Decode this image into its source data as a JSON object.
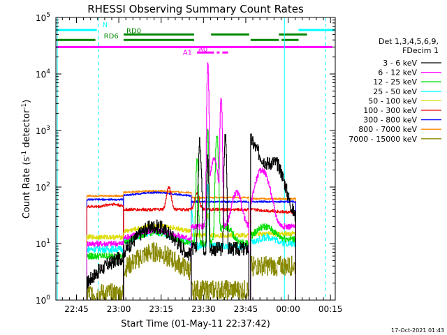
{
  "chart_data": {
    "type": "line",
    "title": "RHESSI Observing Summary Count Rates",
    "xlabel": "Start Time (01-May-11 22:37:42)",
    "ylabel_main": "Count Rate (s",
    "ylabel_sup": "-1",
    "ylabel_end": " detector",
    "ylabel_sup2": "-1",
    "ylabel_close": ")",
    "ylim": [
      1,
      100000
    ],
    "yscale": "log",
    "y_ticks": [
      {
        "v": 1,
        "base": "10",
        "exp": "0"
      },
      {
        "v": 10,
        "base": "10",
        "exp": "1"
      },
      {
        "v": 100,
        "base": "10",
        "exp": "2"
      },
      {
        "v": 1000,
        "base": "10",
        "exp": "3"
      },
      {
        "v": 10000,
        "base": "10",
        "exp": "4"
      },
      {
        "v": 100000,
        "base": "10",
        "exp": "5"
      }
    ],
    "x_unit": "minutes after 22:37:42",
    "xlim": [
      0,
      99
    ],
    "x_ticks": [
      {
        "t": 7.3,
        "label": "22:45"
      },
      {
        "t": 22.3,
        "label": "23:00"
      },
      {
        "t": 37.3,
        "label": "23:15"
      },
      {
        "t": 52.3,
        "label": "23:30"
      },
      {
        "t": 67.3,
        "label": "23:45"
      },
      {
        "t": 82.3,
        "label": "00:00"
      },
      {
        "t": 97.3,
        "label": "00:15"
      }
    ],
    "legend_header": [
      "Det 1,3,4,5,6,9,",
      "FDecim 1"
    ],
    "legend_position": "right",
    "series": [
      {
        "name": "3 - 6 keV",
        "color": "#000000"
      },
      {
        "name": "6 - 12 keV",
        "color": "#ff00ff"
      },
      {
        "name": "12 - 25 keV",
        "color": "#00dd00"
      },
      {
        "name": "25 - 50 keV",
        "color": "#00ffff"
      },
      {
        "name": "50 - 100 keV",
        "color": "#dddd00"
      },
      {
        "name": "100 - 300 keV",
        "color": "#ee0000"
      },
      {
        "name": "300 - 800 keV",
        "color": "#0000ff"
      },
      {
        "name": "800 - 7000 keV",
        "color": "#ff8800"
      },
      {
        "name": "7000 - 15000 keV",
        "color": "#888800"
      }
    ],
    "flag_bars": [
      {
        "label": "N",
        "color": "#00ffff",
        "level": 60000,
        "segments": [
          [
            0,
            14.5
          ],
          [
            86,
            99
          ]
        ],
        "label_t": 16.5
      },
      {
        "label": "RD0",
        "color": "#008800",
        "level": 50000,
        "segments": [
          [
            24,
            49
          ],
          [
            55,
            68.5
          ],
          [
            79,
            89
          ]
        ],
        "label_t": 25
      },
      {
        "label": "RD6",
        "color": "#008800",
        "level": 40000,
        "segments": [
          [
            0,
            14
          ],
          [
            24,
            49
          ],
          [
            69,
            79
          ],
          [
            80,
            86
          ]
        ],
        "label_t": 17
      },
      {
        "label": "A1",
        "color": "#ff00ff",
        "level": 30000,
        "segments": [
          [
            0,
            98
          ]
        ],
        "label_t": 45
      },
      {
        "label": "A0",
        "color": "#ff00ff",
        "level": 24000,
        "segments": [
          [
            50,
            56
          ],
          [
            57,
            58
          ],
          [
            59,
            61
          ]
        ],
        "label_t": 50.5
      }
    ],
    "saa_lines": [
      {
        "color": "#00ffff",
        "style": "dashed",
        "t": 15
      },
      {
        "color": "#00ffff",
        "style": "solid",
        "t": 81
      },
      {
        "color": "#00ffff",
        "style": "dashed",
        "t": 95.5
      },
      {
        "color": "#00ffff",
        "style": "solid",
        "t": 0.5
      }
    ],
    "footer_date": "17-Oct-2021 01:43"
  }
}
